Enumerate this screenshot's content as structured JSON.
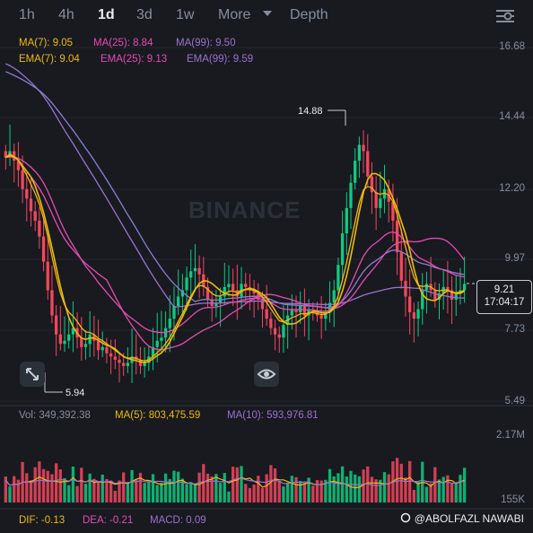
{
  "timeframes": [
    {
      "label": "1h",
      "active": false
    },
    {
      "label": "4h",
      "active": false
    },
    {
      "label": "1d",
      "active": true
    },
    {
      "label": "3d",
      "active": false
    },
    {
      "label": "1w",
      "active": false
    }
  ],
  "more_label": "More",
  "depth_label": "Depth",
  "ma_legend": {
    "ma7": "MA(7): 9.05",
    "ma25": "MA(25): 8.84",
    "ma99": "MA(99): 9.50",
    "ema7": "EMA(7): 9.04",
    "ema25": "EMA(25): 9.13",
    "ema99": "EMA(99): 9.59"
  },
  "price_axis": [
    "16.68",
    "14.44",
    "12.20",
    "9.97",
    "7.73",
    "5.49"
  ],
  "current_price": "9.21",
  "countdown": "17:04:17",
  "high_label": "14.88",
  "low_label": "5.94",
  "watermark": "BINANCE",
  "volume_legend": {
    "vol": "Vol: 349,392.38",
    "ma5": "MA(5): 803,475.59",
    "ma10": "MA(10): 593,976.81"
  },
  "volume_axis": [
    "2.17M",
    "155K"
  ],
  "macd_legend": {
    "dif": "DIF: -0.13",
    "dea": "DEA: -0.21",
    "macd": "MACD: 0.09"
  },
  "credit": "@ABOLFAZL NAWABI",
  "colors": {
    "up": "#0ecb81",
    "down": "#f6465d",
    "ma7": "#f0b90b",
    "ma25": "#e64bb4",
    "ma99": "#9b72cf",
    "ema99": "#8a7fd1",
    "vol_ma5": "#f0b90b",
    "vol_ma10": "#9b72cf"
  },
  "chart_data": {
    "type": "candlestick",
    "interval": "1d",
    "y_range": [
      5.49,
      16.68
    ],
    "high": 14.88,
    "low": 5.94,
    "closes": [
      13.2,
      13.4,
      13.1,
      12.8,
      12.2,
      11.9,
      11.5,
      11.2,
      10.7,
      9.9,
      9.0,
      8.2,
      7.6,
      7.3,
      7.4,
      7.6,
      7.8,
      7.5,
      7.2,
      7.3,
      7.6,
      7.4,
      7.1,
      7.2,
      7.0,
      6.9,
      6.8,
      6.7,
      6.6,
      6.7,
      6.9,
      6.8,
      6.6,
      6.7,
      6.9,
      7.2,
      7.4,
      7.5,
      7.8,
      8.1,
      8.5,
      8.8,
      9.0,
      9.4,
      9.6,
      9.7,
      9.5,
      9.1,
      8.7,
      8.5,
      8.6,
      8.8,
      9.1,
      9.2,
      9.0,
      8.8,
      9.2,
      9.1,
      9.0,
      8.9,
      8.7,
      8.4,
      8.1,
      7.8,
      7.6,
      7.5,
      7.9,
      8.2,
      8.4,
      8.3,
      8.5,
      8.2,
      8.4,
      8.3,
      8.2,
      8.1,
      8.3,
      8.6,
      9.0,
      9.8,
      10.8,
      11.6,
      12.4,
      13.1,
      13.6,
      13.4,
      12.6,
      12.1,
      11.6,
      11.9,
      12.2,
      11.8,
      11.2,
      10.2,
      9.3,
      8.8,
      8.3,
      8.1,
      8.4,
      9.0,
      9.2,
      9.0,
      8.7,
      8.9,
      9.1,
      9.0,
      8.7,
      8.9,
      9.0,
      9.2
    ],
    "volume_axis_range": [
      "155K",
      "2.17M"
    ],
    "volume_latest": 349392.38
  }
}
